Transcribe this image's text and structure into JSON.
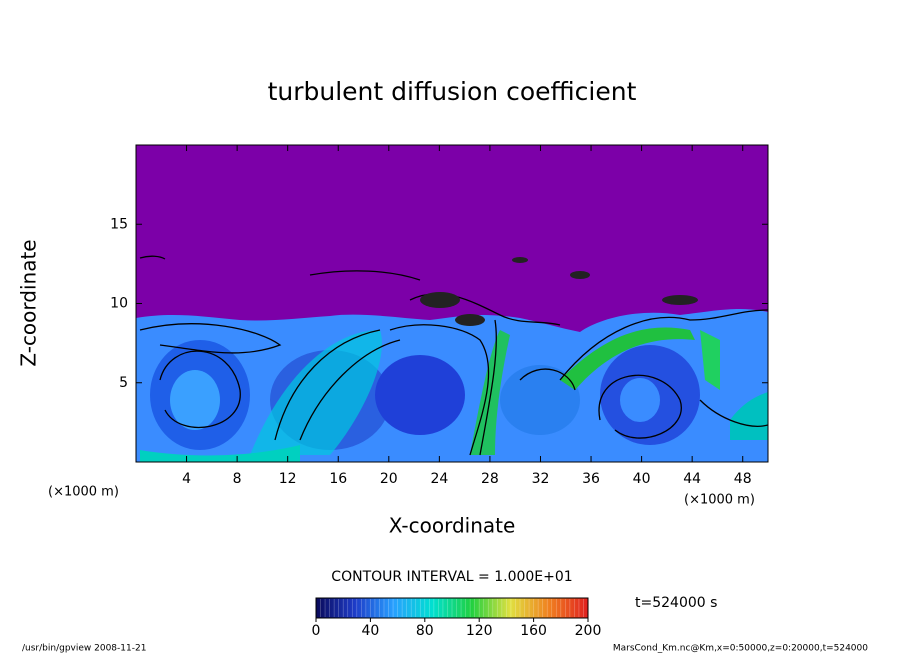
{
  "chart_data": {
    "type": "contour",
    "title": "turbulent diffusion coefficient",
    "xlabel": "X-coordinate",
    "ylabel": "Z-coordinate",
    "xunit": "(×1000 m)",
    "xunit2": "(×1000 m)",
    "xlim": [
      0,
      50
    ],
    "xticks": [
      4,
      8,
      12,
      16,
      20,
      24,
      28,
      32,
      36,
      40,
      44,
      48
    ],
    "ylim": [
      0,
      20
    ],
    "yticks": [
      5,
      10,
      15
    ],
    "contour_interval": "CONTOUR INTERVAL = 1.000E+01",
    "time": "t=524000 s",
    "colorbar": {
      "lim": [
        0,
        200
      ],
      "ticks": [
        0,
        40,
        80,
        120,
        160,
        200
      ],
      "colors": [
        "#0a0a5a",
        "#1e3cc8",
        "#28a0ff",
        "#00e0d0",
        "#20d040",
        "#e0e040",
        "#f08020",
        "#e02020"
      ]
    },
    "footer_left": "/usr/bin/gpview  2008-11-21",
    "footer_right": "MarsCond_Km.nc@Km,x=0:50000,z=0:20000,t=524000"
  }
}
